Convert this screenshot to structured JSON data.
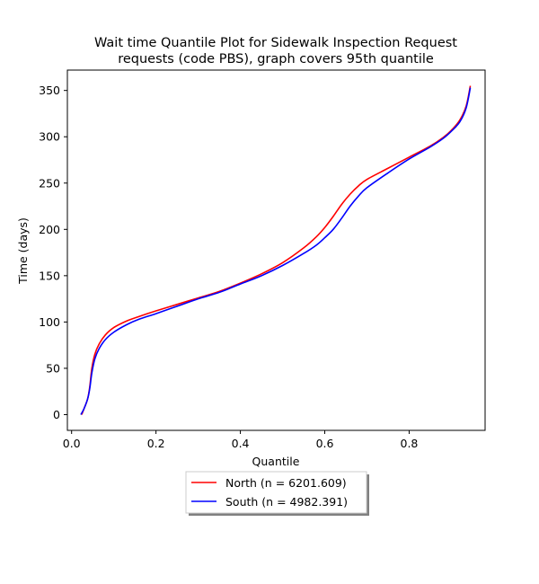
{
  "chart_data": {
    "type": "line",
    "title_lines": [
      "Wait time Quantile Plot for Sidewalk Inspection Request",
      "requests (code PBS), graph covers 95th quantile"
    ],
    "xlabel": "Quantile",
    "ylabel": "Time (days)",
    "xlim": [
      -0.01,
      0.98
    ],
    "ylim": [
      -17,
      372
    ],
    "xticks": [
      0.0,
      0.2,
      0.4,
      0.6,
      0.8
    ],
    "xtick_labels": [
      "0.0",
      "0.2",
      "0.4",
      "0.6",
      "0.8"
    ],
    "yticks": [
      0,
      50,
      100,
      150,
      200,
      250,
      300,
      350
    ],
    "ytick_labels": [
      "0",
      "50",
      "100",
      "150",
      "200",
      "250",
      "300",
      "350"
    ],
    "grid": false,
    "legend_position": "below plot, centered",
    "series": [
      {
        "name": "North (n = 6201.609)",
        "color": "#ff0000",
        "points": [
          [
            0.024,
            0
          ],
          [
            0.03,
            7
          ],
          [
            0.038,
            17
          ],
          [
            0.043,
            30
          ],
          [
            0.048,
            50
          ],
          [
            0.055,
            65
          ],
          [
            0.065,
            76
          ],
          [
            0.08,
            86
          ],
          [
            0.1,
            94
          ],
          [
            0.13,
            101
          ],
          [
            0.16,
            106
          ],
          [
            0.2,
            112
          ],
          [
            0.25,
            119
          ],
          [
            0.3,
            126
          ],
          [
            0.35,
            133
          ],
          [
            0.4,
            142
          ],
          [
            0.45,
            152
          ],
          [
            0.5,
            164
          ],
          [
            0.55,
            180
          ],
          [
            0.58,
            192
          ],
          [
            0.6,
            202
          ],
          [
            0.62,
            214
          ],
          [
            0.64,
            227
          ],
          [
            0.66,
            238
          ],
          [
            0.68,
            247
          ],
          [
            0.7,
            254
          ],
          [
            0.75,
            266
          ],
          [
            0.8,
            278
          ],
          [
            0.85,
            290
          ],
          [
            0.88,
            299
          ],
          [
            0.9,
            307
          ],
          [
            0.92,
            318
          ],
          [
            0.935,
            333
          ],
          [
            0.945,
            355
          ]
        ]
      },
      {
        "name": "South (n = 4982.391)",
        "color": "#0000ff",
        "points": [
          [
            0.022,
            0
          ],
          [
            0.03,
            7
          ],
          [
            0.038,
            17
          ],
          [
            0.043,
            28
          ],
          [
            0.048,
            45
          ],
          [
            0.055,
            60
          ],
          [
            0.065,
            71
          ],
          [
            0.08,
            81
          ],
          [
            0.1,
            89
          ],
          [
            0.13,
            97
          ],
          [
            0.16,
            103
          ],
          [
            0.2,
            109
          ],
          [
            0.25,
            117
          ],
          [
            0.3,
            125
          ],
          [
            0.35,
            132
          ],
          [
            0.4,
            141
          ],
          [
            0.45,
            150
          ],
          [
            0.5,
            161
          ],
          [
            0.55,
            174
          ],
          [
            0.58,
            183
          ],
          [
            0.6,
            191
          ],
          [
            0.62,
            200
          ],
          [
            0.64,
            212
          ],
          [
            0.66,
            225
          ],
          [
            0.68,
            236
          ],
          [
            0.7,
            245
          ],
          [
            0.75,
            261
          ],
          [
            0.8,
            276
          ],
          [
            0.85,
            289
          ],
          [
            0.88,
            298
          ],
          [
            0.9,
            306
          ],
          [
            0.92,
            316
          ],
          [
            0.935,
            331
          ],
          [
            0.945,
            353
          ]
        ]
      }
    ]
  }
}
